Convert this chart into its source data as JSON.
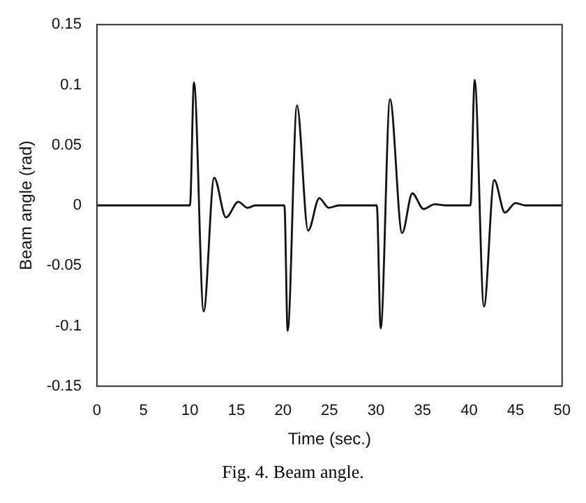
{
  "chart_data": {
    "type": "line",
    "xlabel": "Time (sec.)",
    "ylabel": "Beam angle (rad)",
    "annotations": [
      "Fig. 4. Beam angle."
    ],
    "xlim": [
      0,
      50
    ],
    "ylim": [
      -0.15,
      0.15
    ],
    "xticks": [
      0,
      5,
      10,
      15,
      20,
      25,
      30,
      35,
      40,
      45,
      50
    ],
    "yticks": [
      -0.15,
      -0.1,
      -0.05,
      0,
      0.05,
      0.1,
      0.15
    ],
    "grid": false,
    "legend": false,
    "marker": "none",
    "line_style": "solid",
    "series": [
      {
        "color": "#111111",
        "x": [
          0,
          10,
          10.43,
          11.47,
          12.6,
          13.87,
          15.2,
          16.2,
          17,
          20.15,
          20.5,
          21.5,
          22.7,
          23.9,
          24.9,
          26,
          30.08,
          30.5,
          31.5,
          32.8,
          33.9,
          35.1,
          36.3,
          37.5,
          40.15,
          40.6,
          41.6,
          42.7,
          43.85,
          45,
          46,
          50
        ],
        "values": [
          0,
          0,
          0.102,
          -0.088,
          0.023,
          -0.01,
          0.003,
          -0.002,
          0,
          0,
          -0.104,
          0.083,
          -0.021,
          0.006,
          -0.002,
          0,
          0,
          -0.102,
          0.088,
          -0.023,
          0.01,
          -0.003,
          0.001,
          0,
          0,
          0.104,
          -0.084,
          0.021,
          -0.006,
          0.002,
          0,
          0
        ]
      }
    ]
  }
}
